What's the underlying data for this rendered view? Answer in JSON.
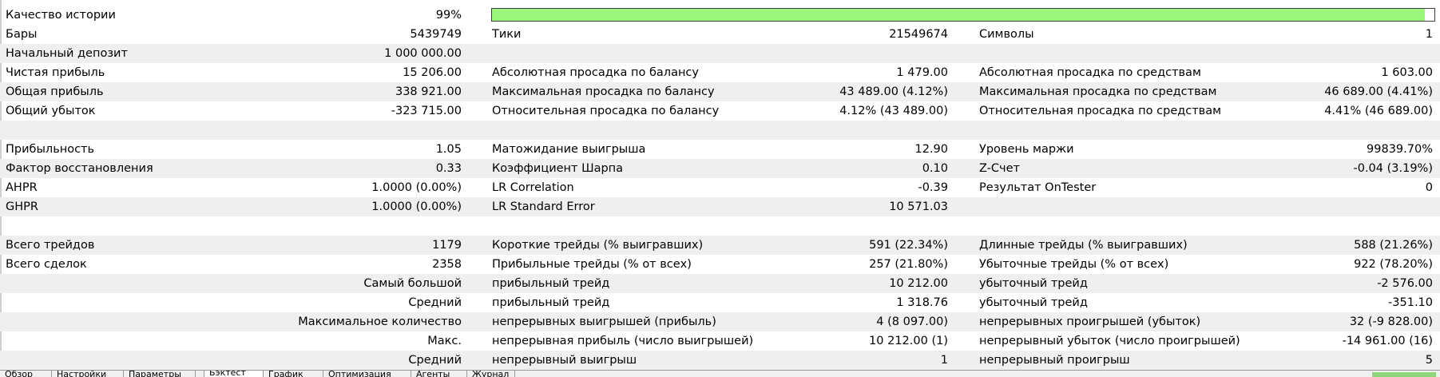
{
  "quality": {
    "label": "Качество истории",
    "value": "99%",
    "progress_fraction": 0.99,
    "bar_color": "#9af57c"
  },
  "rows": [
    {
      "shaded": false,
      "c1l": "Бары",
      "c1v": "5439749",
      "c2l": "Тики",
      "c2v": "21549674",
      "c3l": "Символы",
      "c3v": "1"
    },
    {
      "shaded": true,
      "c1l": "Начальный депозит",
      "c1v": "1 000 000.00",
      "c2l": "",
      "c2v": "",
      "c3l": "",
      "c3v": ""
    },
    {
      "shaded": false,
      "c1l": "Чистая прибыль",
      "c1v": "15 206.00",
      "c2l": "Абсолютная просадка по балансу",
      "c2v": "1 479.00",
      "c3l": "Абсолютная просадка по средствам",
      "c3v": "1 603.00"
    },
    {
      "shaded": true,
      "c1l": "Общая прибыль",
      "c1v": "338 921.00",
      "c2l": "Максимальная просадка по балансу",
      "c2v": "43 489.00 (4.12%)",
      "c3l": "Максимальная просадка по средствам",
      "c3v": "46 689.00 (4.41%)"
    },
    {
      "shaded": false,
      "c1l": "Общий убыток",
      "c1v": "-323 715.00",
      "c2l": "Относительная просадка по балансу",
      "c2v": "4.12% (43 489.00)",
      "c3l": "Относительная просадка по средствам",
      "c3v": "4.41% (46 689.00)"
    },
    {
      "shaded": true,
      "c1l": "",
      "c1v": "",
      "c2l": "",
      "c2v": "",
      "c3l": "",
      "c3v": ""
    },
    {
      "shaded": false,
      "c1l": "Прибыльность",
      "c1v": "1.05",
      "c2l": "Матожидание выигрыша",
      "c2v": "12.90",
      "c3l": "Уровень маржи",
      "c3v": "99839.70%"
    },
    {
      "shaded": true,
      "c1l": "Фактор восстановления",
      "c1v": "0.33",
      "c2l": "Коэффициент Шарпа",
      "c2v": "0.10",
      "c3l": "Z-Счет",
      "c3v": "-0.04 (3.19%)"
    },
    {
      "shaded": false,
      "c1l": "AHPR",
      "c1v": "1.0000 (0.00%)",
      "c2l": "LR Correlation",
      "c2v": "-0.39",
      "c3l": "Результат OnTester",
      "c3v": "0"
    },
    {
      "shaded": true,
      "c1l": "GHPR",
      "c1v": "1.0000 (0.00%)",
      "c2l": "LR Standard Error",
      "c2v": "10 571.03",
      "c3l": "",
      "c3v": ""
    },
    {
      "shaded": false,
      "c1l": "",
      "c1v": "",
      "c2l": "",
      "c2v": "",
      "c3l": "",
      "c3v": ""
    },
    {
      "shaded": true,
      "c1l": "Всего трейдов",
      "c1v": "1179",
      "c2l": "Короткие трейды (% выигравших)",
      "c2v": "591 (22.34%)",
      "c3l": "Длинные трейды (% выигравших)",
      "c3v": "588 (21.26%)"
    },
    {
      "shaded": false,
      "c1l": "Всего сделок",
      "c1v": "2358",
      "c2l": "Прибыльные трейды (% от всех)",
      "c2v": "257 (21.80%)",
      "c3l": "Убыточные трейды (% от всех)",
      "c3v": "922 (78.20%)"
    },
    {
      "shaded": true,
      "c1lr": "Самый большой",
      "c2l": "прибыльный трейд",
      "c2v": "10 212.00",
      "c3l": "убыточный трейд",
      "c3v": "-2 576.00"
    },
    {
      "shaded": false,
      "c1lr": "Средний",
      "c2l": "прибыльный трейд",
      "c2v": "1 318.76",
      "c3l": "убыточный трейд",
      "c3v": "-351.10"
    },
    {
      "shaded": true,
      "c1lr": "Максимальное количество",
      "c2l": "непрерывных выигрышей (прибыль)",
      "c2v": "4 (8 097.00)",
      "c3l": "непрерывных проигрышей (убыток)",
      "c3v": "32 (-9 828.00)"
    },
    {
      "shaded": false,
      "c1lr": "Макс.",
      "c2l": "непрерывная прибыль (число выигрышей)",
      "c2v": "10 212.00 (1)",
      "c3l": "непрерывный убыток (число проигрышей)",
      "c3v": "-14 961.00 (16)"
    },
    {
      "shaded": true,
      "c1lr": "Средний",
      "c2l": "непрерывный выигрыш",
      "c2v": "1",
      "c3l": "непрерывный проигрыш",
      "c3v": "5"
    }
  ],
  "tabs": [
    {
      "label": "Обзор",
      "active": false
    },
    {
      "label": "Настройки",
      "active": false
    },
    {
      "label": "Параметры",
      "active": false
    },
    {
      "label": "Бэктест",
      "active": true
    },
    {
      "label": "График",
      "active": false
    },
    {
      "label": "Оптимизация",
      "active": false
    },
    {
      "label": "Агенты",
      "active": false
    },
    {
      "label": "Журнал",
      "active": false
    }
  ]
}
